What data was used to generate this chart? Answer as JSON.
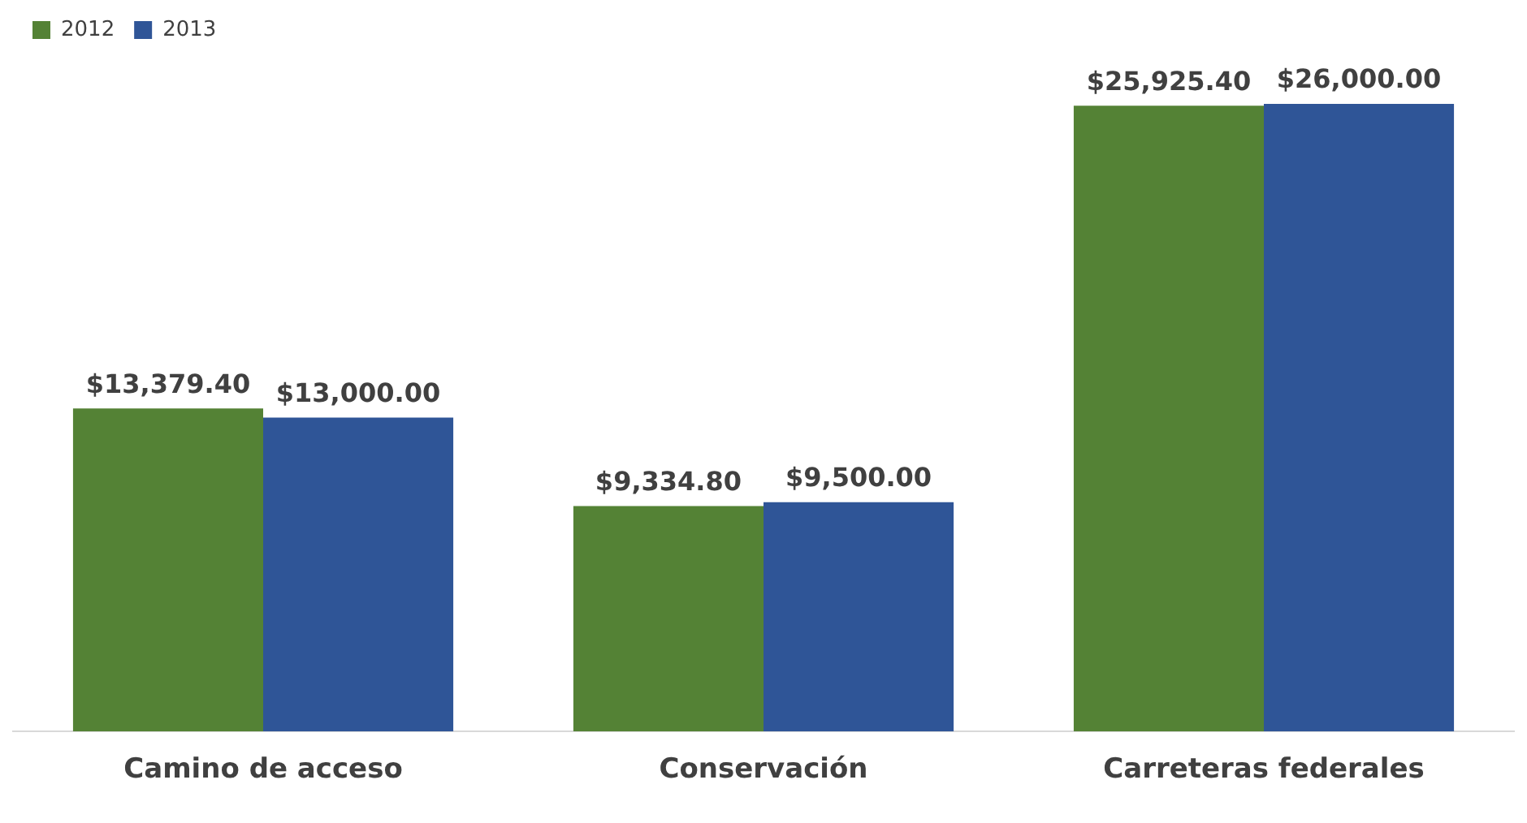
{
  "chart_data": {
    "type": "bar",
    "categories": [
      "Camino de acceso",
      "Conservación",
      "Carreteras federales"
    ],
    "series": [
      {
        "name": "2012",
        "color": "#548235",
        "values": [
          13379.4,
          9334.8,
          25925.4
        ],
        "value_labels": [
          "$13,379.40",
          "$9,334.80",
          "$25,925.40"
        ]
      },
      {
        "name": "2013",
        "color": "#2f5597",
        "values": [
          13000,
          9500,
          26000
        ],
        "value_labels": [
          "$13,000.00",
          "$9,500.00",
          "$26,000.00"
        ]
      }
    ],
    "legend": "top left",
    "grid": false
  }
}
